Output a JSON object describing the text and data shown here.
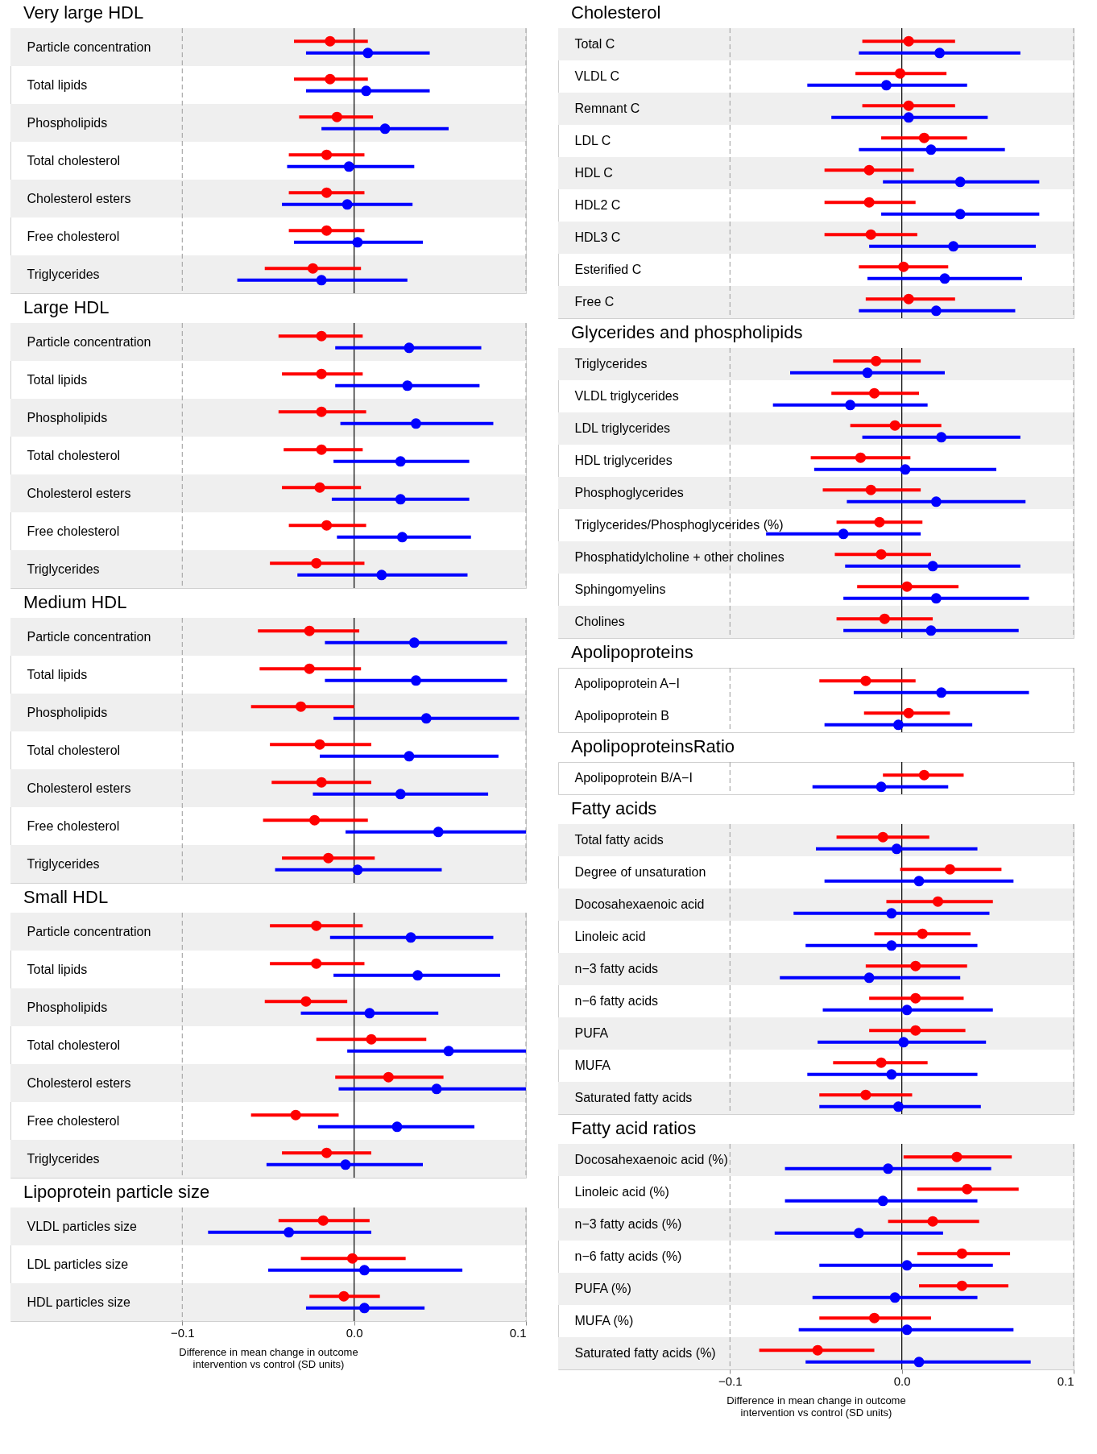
{
  "chart_data": [
    {
      "type": "scatter",
      "orientation": "horizontal",
      "title": "Very large HDL",
      "categories": [
        "Particle concentration",
        "Total lipids",
        "Phospholipids",
        "Total cholesterol",
        "Cholesterol esters",
        "Free cholesterol",
        "Triglycerides"
      ],
      "series": [
        {
          "color": "#ff0000",
          "values": [
            -0.014,
            -0.014,
            -0.01,
            -0.016,
            -0.016,
            -0.016,
            -0.024
          ],
          "errors": [
            [
              -0.035,
              0.008
            ],
            [
              -0.035,
              0.008
            ],
            [
              -0.032,
              0.011
            ],
            [
              -0.038,
              0.006
            ],
            [
              -0.038,
              0.006
            ],
            [
              -0.038,
              0.006
            ],
            [
              -0.052,
              0.004
            ]
          ]
        },
        {
          "color": "#0000ff",
          "values": [
            0.008,
            0.007,
            0.018,
            -0.003,
            -0.004,
            0.002,
            -0.019
          ],
          "errors": [
            [
              -0.028,
              0.044
            ],
            [
              -0.028,
              0.044
            ],
            [
              -0.019,
              0.055
            ],
            [
              -0.039,
              0.035
            ],
            [
              -0.042,
              0.034
            ],
            [
              -0.035,
              0.04
            ],
            [
              -0.068,
              0.031
            ]
          ]
        }
      ],
      "xlim": [
        -0.2,
        0.1
      ],
      "tick_labels": "y",
      "marker": "circle",
      "grid": false,
      "ref_lines": [
        {
          "axis": "x",
          "value": -0.1,
          "color": "#aaaaaa",
          "line_style": "dashed"
        },
        {
          "axis": "x",
          "value": 0,
          "color": "#000000",
          "line_style": "solid"
        },
        {
          "axis": "x",
          "value": 0.1,
          "color": "#aaaaaa",
          "line_style": "dashed"
        }
      ]
    },
    {
      "type": "scatter",
      "orientation": "horizontal",
      "title": "Large HDL",
      "categories": [
        "Particle concentration",
        "Total lipids",
        "Phospholipids",
        "Total cholesterol",
        "Cholesterol esters",
        "Free cholesterol",
        "Triglycerides"
      ],
      "series": [
        {
          "color": "#ff0000",
          "values": [
            -0.019,
            -0.019,
            -0.019,
            -0.019,
            -0.02,
            -0.016,
            -0.022
          ],
          "errors": [
            [
              -0.044,
              0.005
            ],
            [
              -0.042,
              0.005
            ],
            [
              -0.044,
              0.007
            ],
            [
              -0.041,
              0.005
            ],
            [
              -0.042,
              0.004
            ],
            [
              -0.038,
              0.007
            ],
            [
              -0.049,
              0.006
            ]
          ]
        },
        {
          "color": "#0000ff",
          "values": [
            0.032,
            0.031,
            0.036,
            0.027,
            0.027,
            0.028,
            0.016
          ],
          "errors": [
            [
              -0.011,
              0.074
            ],
            [
              -0.011,
              0.073
            ],
            [
              -0.008,
              0.081
            ],
            [
              -0.012,
              0.067
            ],
            [
              -0.013,
              0.067
            ],
            [
              -0.01,
              0.068
            ],
            [
              -0.033,
              0.066
            ]
          ]
        }
      ],
      "xlim": [
        -0.2,
        0.1
      ],
      "tick_labels": "y",
      "marker": "circle",
      "grid": false,
      "ref_lines": [
        {
          "axis": "x",
          "value": -0.1,
          "color": "#aaaaaa",
          "line_style": "dashed"
        },
        {
          "axis": "x",
          "value": 0,
          "color": "#000000",
          "line_style": "solid"
        },
        {
          "axis": "x",
          "value": 0.1,
          "color": "#aaaaaa",
          "line_style": "dashed"
        }
      ]
    },
    {
      "type": "scatter",
      "orientation": "horizontal",
      "title": "Medium HDL",
      "categories": [
        "Particle concentration",
        "Total lipids",
        "Phospholipids",
        "Total cholesterol",
        "Cholesterol esters",
        "Free cholesterol",
        "Triglycerides"
      ],
      "series": [
        {
          "color": "#ff0000",
          "values": [
            -0.026,
            -0.026,
            -0.031,
            -0.02,
            -0.019,
            -0.023,
            -0.015
          ],
          "errors": [
            [
              -0.056,
              0.003
            ],
            [
              -0.055,
              0.004
            ],
            [
              -0.06,
              0.0
            ],
            [
              -0.049,
              0.01
            ],
            [
              -0.048,
              0.01
            ],
            [
              -0.053,
              0.008
            ],
            [
              -0.042,
              0.012
            ]
          ]
        },
        {
          "color": "#0000ff",
          "values": [
            0.035,
            0.036,
            0.042,
            0.032,
            0.027,
            0.049,
            0.002
          ],
          "errors": [
            [
              -0.017,
              0.089
            ],
            [
              -0.017,
              0.089
            ],
            [
              -0.012,
              0.096
            ],
            [
              -0.02,
              0.084
            ],
            [
              -0.024,
              0.078
            ],
            [
              -0.005,
              0.1
            ],
            [
              -0.046,
              0.051
            ]
          ]
        }
      ],
      "xlim": [
        -0.2,
        0.1
      ],
      "tick_labels": "y",
      "marker": "circle",
      "grid": false,
      "ref_lines": [
        {
          "axis": "x",
          "value": -0.1,
          "color": "#aaaaaa",
          "line_style": "dashed"
        },
        {
          "axis": "x",
          "value": 0,
          "color": "#000000",
          "line_style": "solid"
        },
        {
          "axis": "x",
          "value": 0.1,
          "color": "#aaaaaa",
          "line_style": "dashed"
        }
      ]
    },
    {
      "type": "scatter",
      "orientation": "horizontal",
      "title": "Small HDL",
      "categories": [
        "Particle concentration",
        "Total lipids",
        "Phospholipids",
        "Total cholesterol",
        "Cholesterol esters",
        "Free cholesterol",
        "Triglycerides"
      ],
      "series": [
        {
          "color": "#ff0000",
          "values": [
            -0.022,
            -0.022,
            -0.028,
            0.01,
            0.02,
            -0.034,
            -0.016
          ],
          "errors": [
            [
              -0.049,
              0.005
            ],
            [
              -0.049,
              0.006
            ],
            [
              -0.052,
              -0.004
            ],
            [
              -0.022,
              0.042
            ],
            [
              -0.011,
              0.052
            ],
            [
              -0.06,
              -0.009
            ],
            [
              -0.042,
              0.01
            ]
          ]
        },
        {
          "color": "#0000ff",
          "values": [
            0.033,
            0.037,
            0.009,
            0.055,
            0.048,
            0.025,
            -0.005
          ],
          "errors": [
            [
              -0.014,
              0.081
            ],
            [
              -0.012,
              0.085
            ],
            [
              -0.031,
              0.049
            ],
            [
              -0.004,
              0.1
            ],
            [
              -0.009,
              0.1
            ],
            [
              -0.021,
              0.07
            ],
            [
              -0.051,
              0.04
            ]
          ]
        }
      ],
      "xlim": [
        -0.2,
        0.1
      ],
      "tick_labels": "y",
      "marker": "circle",
      "grid": false,
      "ref_lines": [
        {
          "axis": "x",
          "value": -0.1,
          "color": "#aaaaaa",
          "line_style": "dashed"
        },
        {
          "axis": "x",
          "value": 0,
          "color": "#000000",
          "line_style": "solid"
        },
        {
          "axis": "x",
          "value": 0.1,
          "color": "#aaaaaa",
          "line_style": "dashed"
        }
      ]
    },
    {
      "type": "scatter",
      "orientation": "horizontal",
      "title": "Lipoprotein particle size",
      "categories": [
        "VLDL particles size",
        "LDL particles size",
        "HDL particles size"
      ],
      "series": [
        {
          "color": "#ff0000",
          "values": [
            -0.018,
            -0.001,
            -0.006
          ],
          "errors": [
            [
              -0.044,
              0.009
            ],
            [
              -0.031,
              0.03
            ],
            [
              -0.026,
              0.015
            ]
          ]
        },
        {
          "color": "#0000ff",
          "values": [
            -0.038,
            0.006,
            0.006
          ],
          "errors": [
            [
              -0.085,
              0.01
            ],
            [
              -0.05,
              0.063
            ],
            [
              -0.028,
              0.041
            ]
          ]
        }
      ],
      "xlim": [
        -0.2,
        0.1
      ],
      "xticks": [
        {
          "value": -0.1,
          "label": "−0.1"
        },
        {
          "value": 0,
          "label": "0.0"
        },
        {
          "value": 0.1,
          "label": "0.1"
        }
      ],
      "xlabel": "Difference in mean change in outcome\nintervention vs control (SD units)",
      "marker": "circle",
      "grid": false,
      "ref_lines": [
        {
          "axis": "x",
          "value": -0.1,
          "color": "#aaaaaa",
          "line_style": "dashed"
        },
        {
          "axis": "x",
          "value": 0,
          "color": "#000000",
          "line_style": "solid"
        },
        {
          "axis": "x",
          "value": 0.1,
          "color": "#aaaaaa",
          "line_style": "dashed"
        }
      ]
    },
    {
      "type": "scatter",
      "orientation": "horizontal",
      "title": "Cholesterol",
      "categories": [
        "Total C",
        "VLDL C",
        "Remnant C",
        "LDL C",
        "HDL C",
        "HDL2 C",
        "HDL3 C",
        "Esterified C",
        "Free C"
      ],
      "series": [
        {
          "color": "#ff0000",
          "values": [
            0.004,
            -0.001,
            0.004,
            0.013,
            -0.019,
            -0.019,
            -0.018,
            0.001,
            0.004
          ],
          "errors": [
            [
              -0.023,
              0.031
            ],
            [
              -0.027,
              0.026
            ],
            [
              -0.023,
              0.031
            ],
            [
              -0.012,
              0.038
            ],
            [
              -0.045,
              0.007
            ],
            [
              -0.045,
              0.008
            ],
            [
              -0.045,
              0.009
            ],
            [
              -0.025,
              0.027
            ],
            [
              -0.021,
              0.031
            ]
          ]
        },
        {
          "color": "#0000ff",
          "values": [
            0.022,
            -0.009,
            0.004,
            0.017,
            0.034,
            0.034,
            0.03,
            0.025,
            0.02
          ],
          "errors": [
            [
              -0.025,
              0.069
            ],
            [
              -0.055,
              0.038
            ],
            [
              -0.041,
              0.05
            ],
            [
              -0.025,
              0.06
            ],
            [
              -0.011,
              0.08
            ],
            [
              -0.012,
              0.08
            ],
            [
              -0.019,
              0.078
            ],
            [
              -0.02,
              0.07
            ],
            [
              -0.025,
              0.066
            ]
          ]
        }
      ],
      "xlim": [
        -0.2,
        0.1
      ],
      "tick_labels": "y",
      "marker": "circle",
      "grid": false,
      "ref_lines": [
        {
          "axis": "x",
          "value": -0.1,
          "color": "#aaaaaa",
          "line_style": "dashed"
        },
        {
          "axis": "x",
          "value": 0,
          "color": "#000000",
          "line_style": "solid"
        },
        {
          "axis": "x",
          "value": 0.1,
          "color": "#aaaaaa",
          "line_style": "dashed"
        }
      ]
    },
    {
      "type": "scatter",
      "orientation": "horizontal",
      "title": "Glycerides and phospholipids",
      "categories": [
        "Triglycerides",
        "VLDL triglycerides",
        "LDL triglycerides",
        "HDL triglycerides",
        "Phosphoglycerides",
        "Triglycerides/Phosphoglycerides (%)",
        "Phosphatidylcholine + other cholines",
        "Sphingomyelins",
        "Cholines"
      ],
      "series": [
        {
          "color": "#ff0000",
          "values": [
            -0.015,
            -0.016,
            -0.004,
            -0.024,
            -0.018,
            -0.013,
            -0.012,
            0.003,
            -0.01
          ],
          "errors": [
            [
              -0.04,
              0.011
            ],
            [
              -0.041,
              0.01
            ],
            [
              -0.03,
              0.023
            ],
            [
              -0.053,
              0.005
            ],
            [
              -0.046,
              0.011
            ],
            [
              -0.038,
              0.012
            ],
            [
              -0.039,
              0.017
            ],
            [
              -0.026,
              0.033
            ],
            [
              -0.038,
              0.018
            ]
          ]
        },
        {
          "color": "#0000ff",
          "values": [
            -0.02,
            -0.03,
            0.023,
            0.002,
            0.02,
            -0.034,
            0.018,
            0.02,
            0.017
          ],
          "errors": [
            [
              -0.065,
              0.025
            ],
            [
              -0.075,
              0.015
            ],
            [
              -0.023,
              0.069
            ],
            [
              -0.051,
              0.055
            ],
            [
              -0.032,
              0.072
            ],
            [
              -0.079,
              0.011
            ],
            [
              -0.033,
              0.069
            ],
            [
              -0.034,
              0.074
            ],
            [
              -0.034,
              0.068
            ]
          ]
        }
      ],
      "xlim": [
        -0.2,
        0.1
      ],
      "tick_labels": "y",
      "marker": "circle",
      "grid": false,
      "ref_lines": [
        {
          "axis": "x",
          "value": -0.1,
          "color": "#aaaaaa",
          "line_style": "dashed"
        },
        {
          "axis": "x",
          "value": 0,
          "color": "#000000",
          "line_style": "solid"
        },
        {
          "axis": "x",
          "value": 0.1,
          "color": "#aaaaaa",
          "line_style": "dashed"
        }
      ]
    },
    {
      "type": "scatter",
      "orientation": "horizontal",
      "title": "Apolipoproteins",
      "categories": [
        "Apolipoprotein A−I",
        "Apolipoprotein B"
      ],
      "series": [
        {
          "color": "#ff0000",
          "values": [
            -0.021,
            0.004
          ],
          "errors": [
            [
              -0.048,
              0.008
            ],
            [
              -0.022,
              0.028
            ]
          ]
        },
        {
          "color": "#0000ff",
          "values": [
            0.023,
            -0.002
          ],
          "errors": [
            [
              -0.028,
              0.074
            ],
            [
              -0.045,
              0.041
            ]
          ]
        }
      ],
      "xlim": [
        -0.2,
        0.1
      ],
      "tick_labels": "y",
      "marker": "circle",
      "grid": false,
      "ref_lines": [
        {
          "axis": "x",
          "value": -0.1,
          "color": "#aaaaaa",
          "line_style": "dashed"
        },
        {
          "axis": "x",
          "value": 0,
          "color": "#000000",
          "line_style": "solid"
        },
        {
          "axis": "x",
          "value": 0.1,
          "color": "#aaaaaa",
          "line_style": "dashed"
        }
      ]
    },
    {
      "type": "scatter",
      "orientation": "horizontal",
      "title": "ApolipoproteinsRatio",
      "categories": [
        "Apolipoprotein B/A−I"
      ],
      "series": [
        {
          "color": "#ff0000",
          "values": [
            0.013
          ],
          "errors": [
            [
              -0.011,
              0.036
            ]
          ]
        },
        {
          "color": "#0000ff",
          "values": [
            -0.012
          ],
          "errors": [
            [
              -0.052,
              0.027
            ]
          ]
        }
      ],
      "xlim": [
        -0.2,
        0.1
      ],
      "tick_labels": "y",
      "marker": "circle",
      "grid": false,
      "ref_lines": [
        {
          "axis": "x",
          "value": -0.1,
          "color": "#aaaaaa",
          "line_style": "dashed"
        },
        {
          "axis": "x",
          "value": 0,
          "color": "#000000",
          "line_style": "solid"
        },
        {
          "axis": "x",
          "value": 0.1,
          "color": "#aaaaaa",
          "line_style": "dashed"
        }
      ]
    },
    {
      "type": "scatter",
      "orientation": "horizontal",
      "title": "Fatty acids",
      "categories": [
        "Total fatty acids",
        "Degree of unsaturation",
        "Docosahexaenoic acid",
        "Linoleic acid",
        "n−3 fatty acids",
        "n−6 fatty acids",
        "PUFA",
        "MUFA",
        "Saturated fatty acids"
      ],
      "series": [
        {
          "color": "#ff0000",
          "values": [
            -0.011,
            0.028,
            0.021,
            0.012,
            0.008,
            0.008,
            0.008,
            -0.012,
            -0.021
          ],
          "errors": [
            [
              -0.038,
              0.016
            ],
            [
              -0.001,
              0.058
            ],
            [
              -0.009,
              0.053
            ],
            [
              -0.016,
              0.04
            ],
            [
              -0.021,
              0.038
            ],
            [
              -0.019,
              0.036
            ],
            [
              -0.019,
              0.037
            ],
            [
              -0.04,
              0.015
            ],
            [
              -0.048,
              0.006
            ]
          ]
        },
        {
          "color": "#0000ff",
          "values": [
            -0.003,
            0.01,
            -0.006,
            -0.006,
            -0.019,
            0.003,
            0.001,
            -0.006,
            -0.002
          ],
          "errors": [
            [
              -0.05,
              0.044
            ],
            [
              -0.045,
              0.065
            ],
            [
              -0.063,
              0.051
            ],
            [
              -0.056,
              0.044
            ],
            [
              -0.071,
              0.034
            ],
            [
              -0.046,
              0.053
            ],
            [
              -0.049,
              0.049
            ],
            [
              -0.055,
              0.044
            ],
            [
              -0.048,
              0.046
            ]
          ]
        }
      ],
      "xlim": [
        -0.2,
        0.1
      ],
      "tick_labels": "y",
      "marker": "circle",
      "grid": false,
      "ref_lines": [
        {
          "axis": "x",
          "value": -0.1,
          "color": "#aaaaaa",
          "line_style": "dashed"
        },
        {
          "axis": "x",
          "value": 0,
          "color": "#000000",
          "line_style": "solid"
        },
        {
          "axis": "x",
          "value": 0.1,
          "color": "#aaaaaa",
          "line_style": "dashed"
        }
      ]
    },
    {
      "type": "scatter",
      "orientation": "horizontal",
      "title": "Fatty acid ratios",
      "categories": [
        "Docosahexaenoic acid (%)",
        "Linoleic acid (%)",
        "n−3 fatty acids (%)",
        "n−6 fatty acids (%)",
        "PUFA (%)",
        "MUFA (%)",
        "Saturated fatty acids (%)"
      ],
      "series": [
        {
          "color": "#ff0000",
          "values": [
            0.032,
            0.038,
            0.018,
            0.035,
            0.035,
            -0.016,
            -0.049
          ],
          "errors": [
            [
              0.001,
              0.064
            ],
            [
              0.009,
              0.068
            ],
            [
              -0.008,
              0.045
            ],
            [
              0.009,
              0.063
            ],
            [
              0.01,
              0.062
            ],
            [
              -0.048,
              0.017
            ],
            [
              -0.083,
              -0.016
            ]
          ]
        },
        {
          "color": "#0000ff",
          "values": [
            -0.008,
            -0.011,
            -0.025,
            0.003,
            -0.004,
            0.003,
            0.01
          ],
          "errors": [
            [
              -0.068,
              0.052
            ],
            [
              -0.068,
              0.044
            ],
            [
              -0.074,
              0.024
            ],
            [
              -0.048,
              0.053
            ],
            [
              -0.052,
              0.044
            ],
            [
              -0.06,
              0.065
            ],
            [
              -0.056,
              0.075
            ]
          ]
        }
      ],
      "xlim": [
        -0.2,
        0.1
      ],
      "xticks": [
        {
          "value": -0.1,
          "label": "−0.1"
        },
        {
          "value": 0,
          "label": "0.0"
        },
        {
          "value": 0.1,
          "label": "0.1"
        }
      ],
      "xlabel": "Difference in mean change in outcome\nintervention vs control (SD units)",
      "marker": "circle",
      "grid": false,
      "ref_lines": [
        {
          "axis": "x",
          "value": -0.1,
          "color": "#aaaaaa",
          "line_style": "dashed"
        },
        {
          "axis": "x",
          "value": 0,
          "color": "#000000",
          "line_style": "solid"
        },
        {
          "axis": "x",
          "value": 0.1,
          "color": "#aaaaaa",
          "line_style": "dashed"
        }
      ]
    }
  ]
}
